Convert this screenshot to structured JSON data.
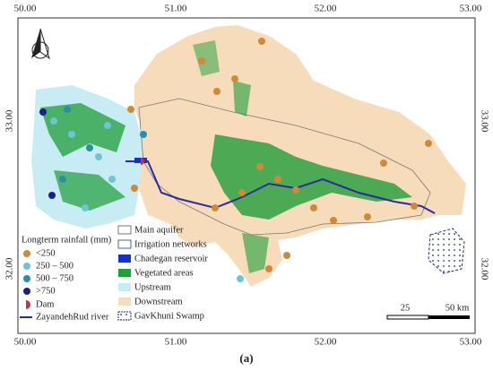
{
  "map": {
    "x_labels": [
      "50.00",
      "51.00",
      "52.00",
      "53.00"
    ],
    "y_labels": [
      "33.00",
      "32.00"
    ],
    "rainfall_legend": {
      "title": "Longterm rainfall (mm)",
      "items": [
        "<250",
        "250 – 500",
        "500 – 750",
        ">750"
      ]
    },
    "point_legend": [
      "Dam",
      "ZayandehRud river"
    ],
    "layer_legend": [
      "Main aquifer",
      "Irrigation networks",
      "Chadegan reservoir",
      "Vegetated areas",
      "Upstream",
      "Downstream",
      "GavKhuni Swamp"
    ],
    "scale_labels": [
      "25",
      "50 km"
    ]
  },
  "caption": "(a)"
}
